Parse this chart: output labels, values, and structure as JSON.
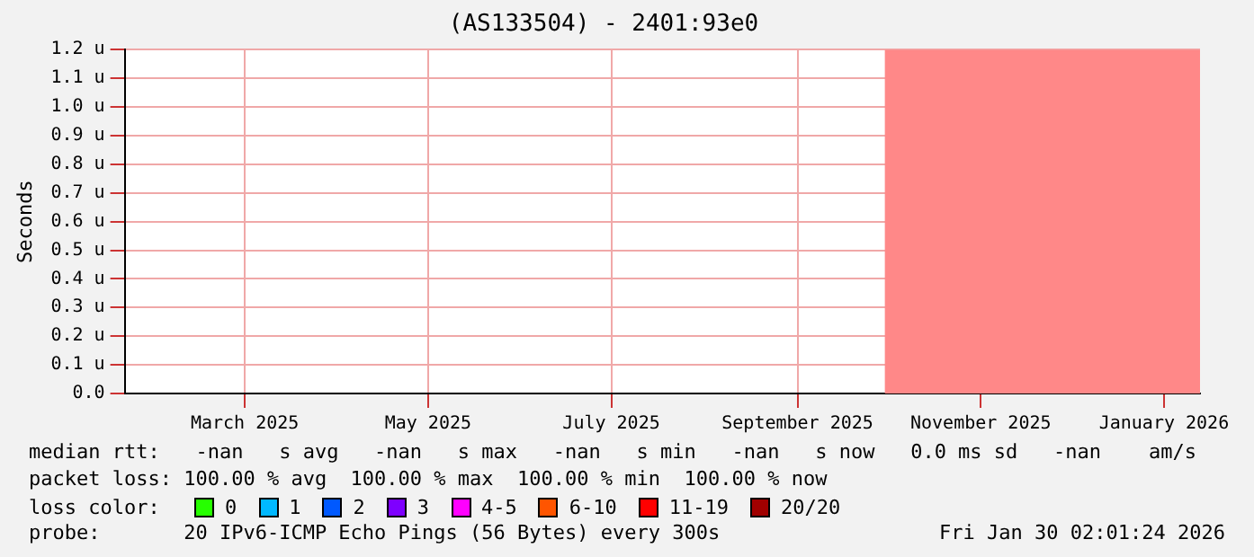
{
  "chart_data": {
    "type": "line",
    "title": "(AS133504) - 2401:93e0",
    "ylabel": "Seconds",
    "legend_title": "loss color:",
    "xlim": [
      "2025-02-04",
      "2026-01-28"
    ],
    "xticks": [
      {
        "value": "2025-03-16",
        "label": "March 2025"
      },
      {
        "value": "2025-05-16",
        "label": "May 2025"
      },
      {
        "value": "2025-07-16",
        "label": "July 2025"
      },
      {
        "value": "2025-09-16",
        "label": "September 2025"
      },
      {
        "value": "2025-11-16",
        "label": "November 2025"
      },
      {
        "value": "2026-01-16",
        "label": "January 2026"
      }
    ],
    "ylim": [
      0,
      1.2
    ],
    "yticks": [
      {
        "value": 0,
        "label": "0.0"
      },
      {
        "value": 0.1,
        "label": "0.1 u"
      },
      {
        "value": 0.2,
        "label": "0.2 u"
      },
      {
        "value": 0.3,
        "label": "0.3 u"
      },
      {
        "value": 0.4,
        "label": "0.4 u"
      },
      {
        "value": 0.5,
        "label": "0.5 u"
      },
      {
        "value": 0.6,
        "label": "0.6 u"
      },
      {
        "value": 0.7,
        "label": "0.7 u"
      },
      {
        "value": 0.8,
        "label": "0.8 u"
      },
      {
        "value": 0.9,
        "label": "0.9 u"
      },
      {
        "value": 1.0,
        "label": "1.0 u"
      },
      {
        "value": 1.1,
        "label": "1.1 u"
      },
      {
        "value": 1.2,
        "label": "1.2 u"
      }
    ],
    "grid": true,
    "legend": "bottom",
    "series": [
      {
        "type": "area",
        "color": "#ff8888",
        "x": [
          "2025-10-15",
          "2026-01-28"
        ],
        "values": [
          1.2,
          1.2
        ]
      },
      {
        "name": "0",
        "color": "#26ff00"
      },
      {
        "name": "1",
        "color": "#00b8ff"
      },
      {
        "name": "2",
        "color": "#0059ff"
      },
      {
        "name": "3",
        "color": "#7e00ff"
      },
      {
        "name": "4-5",
        "color": "#ff00ff"
      },
      {
        "name": "6-10",
        "color": "#ff5500"
      },
      {
        "name": "11-19",
        "color": "#ff0000"
      },
      {
        "name": "20/20",
        "color": "#a10000"
      }
    ],
    "annotations": [
      "median rtt:   -nan   s avg   -nan   s max   -nan   s min   -nan   s now   0.0 ms sd   -nan    am/s",
      "packet loss: 100.00 % avg  100.00 % max  100.00 % min  100.00 % now",
      "probe:       20 IPv6-ICMP Echo Pings (56 Bytes) every 300s",
      "Fri Jan 30 02:01:24 2026"
    ]
  }
}
